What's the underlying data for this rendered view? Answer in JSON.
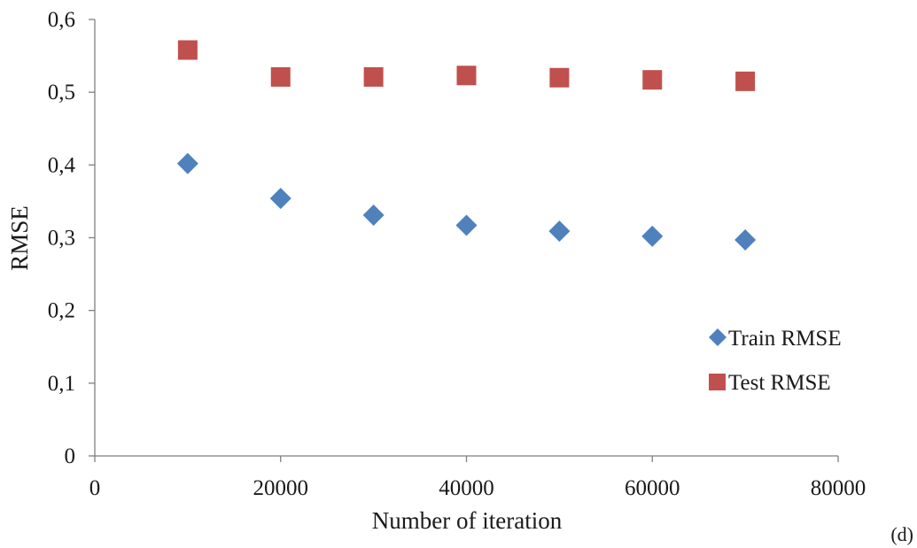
{
  "chart_data": {
    "type": "scatter",
    "title": "",
    "xlabel": "Number of iteration",
    "ylabel": "RMSE",
    "panel_label": "(d)",
    "xlim": [
      0,
      80000
    ],
    "ylim": [
      0,
      0.6
    ],
    "x_ticks": [
      0,
      20000,
      40000,
      60000,
      80000
    ],
    "x_tick_labels": [
      "0",
      "20000",
      "40000",
      "60000",
      "80000"
    ],
    "y_ticks": [
      0,
      0.1,
      0.2,
      0.3,
      0.4,
      0.5,
      0.6
    ],
    "y_tick_labels": [
      "0",
      "0,1",
      "0,2",
      "0,3",
      "0,4",
      "0,5",
      "0,6"
    ],
    "grid": false,
    "legend_position": "right",
    "series": [
      {
        "name": "Train RMSE",
        "marker": "diamond",
        "color": "#4f81bd",
        "x": [
          10000,
          20000,
          30000,
          40000,
          50000,
          60000,
          70000
        ],
        "y": [
          0.402,
          0.354,
          0.331,
          0.317,
          0.309,
          0.302,
          0.297
        ]
      },
      {
        "name": "Test RMSE",
        "marker": "square",
        "color": "#c0504d",
        "x": [
          10000,
          20000,
          30000,
          40000,
          50000,
          60000,
          70000
        ],
        "y": [
          0.558,
          0.521,
          0.521,
          0.523,
          0.52,
          0.517,
          0.515
        ]
      }
    ]
  }
}
